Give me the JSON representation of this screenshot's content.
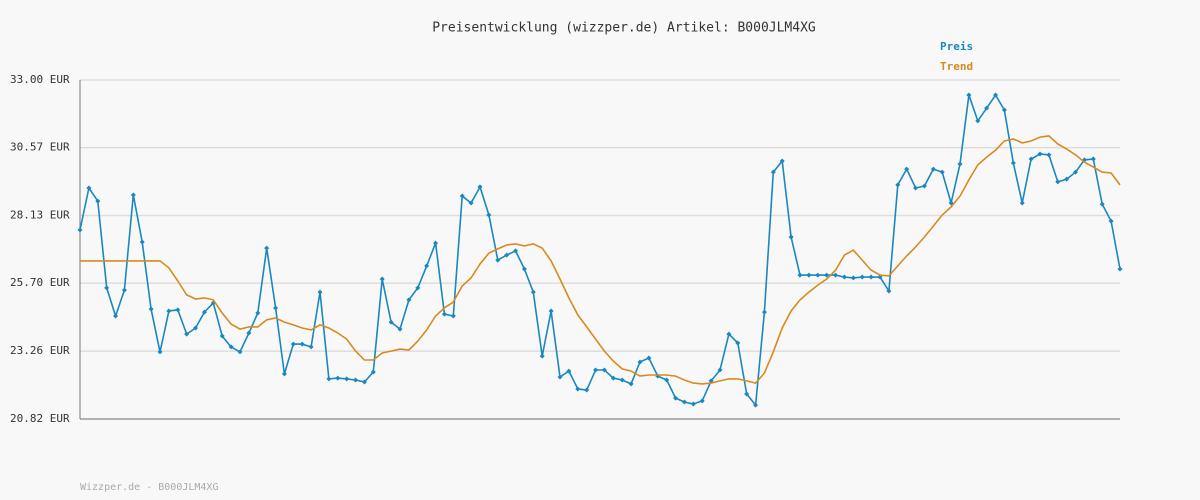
{
  "chart_data": {
    "type": "line",
    "title": "Preisentwicklung (wizzper.de) Artikel: B000JLM4XG",
    "footer": "Wizzper.de - B000JLM4XG",
    "categories": [
      null,
      null,
      null,
      null,
      null,
      null,
      null,
      null,
      null,
      null,
      null,
      null,
      null,
      null,
      null,
      null,
      null,
      null,
      null,
      null,
      null,
      null,
      null,
      null,
      null,
      null,
      null,
      null,
      null,
      null,
      null,
      null,
      null,
      null,
      null,
      null,
      null,
      null,
      null,
      null,
      null,
      null,
      null,
      null,
      null,
      null,
      null,
      null,
      null,
      null,
      null,
      null,
      null,
      null,
      null,
      null,
      null,
      null,
      null,
      null,
      null,
      null,
      null,
      null,
      null,
      null,
      null,
      null,
      null,
      null,
      null,
      null,
      null,
      null,
      null,
      null,
      null,
      null,
      null,
      null,
      null,
      null,
      null,
      null,
      null,
      null,
      null,
      null,
      null,
      null,
      null,
      null,
      null,
      null,
      null,
      null,
      null,
      null,
      null,
      null,
      null,
      null,
      null,
      null,
      null,
      null,
      null,
      null,
      null,
      null,
      null,
      null,
      null,
      null,
      null,
      null,
      null,
      null
    ],
    "series": [
      {
        "name": "Preis",
        "color": "#1a87c0",
        "markers": true,
        "values": [
          27.61,
          29.12,
          28.65,
          25.53,
          24.52,
          25.45,
          28.87,
          27.18,
          24.77,
          23.23,
          24.7,
          24.74,
          23.87,
          24.09,
          24.66,
          24.99,
          23.8,
          23.41,
          23.23,
          23.91,
          24.63,
          26.96,
          24.81,
          22.44,
          23.51,
          23.51,
          23.41,
          25.38,
          22.26,
          22.29,
          22.26,
          22.22,
          22.15,
          22.51,
          25.85,
          24.3,
          24.05,
          25.1,
          25.53,
          26.32,
          27.14,
          24.59,
          24.52,
          28.83,
          28.58,
          29.16,
          28.15,
          26.53,
          26.71,
          26.86,
          26.21,
          25.38,
          23.08,
          24.7,
          22.33,
          22.54,
          21.9,
          21.86,
          22.58,
          22.58,
          22.29,
          22.22,
          22.08,
          22.87,
          23.01,
          22.36,
          22.22,
          21.57,
          21.43,
          21.36,
          21.47,
          22.19,
          22.58,
          23.87,
          23.55,
          21.72,
          21.32,
          24.66,
          29.69,
          30.09,
          27.36,
          25.99,
          25.99,
          25.99,
          25.99,
          25.99,
          25.92,
          25.89,
          25.92,
          25.92,
          25.92,
          25.42,
          29.23,
          29.8,
          29.12,
          29.19,
          29.8,
          29.69,
          28.58,
          29.98,
          32.46,
          31.53,
          31.99,
          32.46,
          31.92,
          30.02,
          28.58,
          30.16,
          30.34,
          30.31,
          29.34,
          29.44,
          29.69,
          30.13,
          30.16,
          28.54,
          27.93,
          26.21
        ]
      },
      {
        "name": "Trend",
        "color": "#d98a1f",
        "markers": false,
        "values": [
          26.5,
          26.5,
          26.5,
          26.5,
          26.5,
          26.5,
          26.5,
          26.5,
          26.5,
          26.5,
          26.25,
          25.78,
          25.28,
          25.13,
          25.17,
          25.1,
          24.63,
          24.23,
          24.05,
          24.13,
          24.13,
          24.38,
          24.45,
          24.3,
          24.2,
          24.09,
          24.02,
          24.2,
          24.09,
          23.91,
          23.69,
          23.26,
          22.94,
          22.94,
          23.19,
          23.26,
          23.33,
          23.3,
          23.62,
          24.02,
          24.52,
          24.81,
          25.02,
          25.6,
          25.89,
          26.39,
          26.78,
          26.93,
          27.07,
          27.11,
          27.04,
          27.11,
          26.96,
          26.5,
          25.85,
          25.17,
          24.56,
          24.13,
          23.69,
          23.26,
          22.9,
          22.62,
          22.54,
          22.36,
          22.4,
          22.4,
          22.4,
          22.36,
          22.22,
          22.11,
          22.08,
          22.11,
          22.19,
          22.26,
          22.26,
          22.19,
          22.11,
          22.47,
          23.23,
          24.09,
          24.7,
          25.1,
          25.38,
          25.63,
          25.85,
          26.17,
          26.71,
          26.89,
          26.53,
          26.17,
          25.99,
          25.96,
          26.32,
          26.68,
          27.0,
          27.36,
          27.75,
          28.15,
          28.44,
          28.83,
          29.41,
          29.95,
          30.23,
          30.48,
          30.81,
          30.88,
          30.74,
          30.81,
          30.95,
          30.99,
          30.7,
          30.52,
          30.31,
          30.05,
          29.87,
          29.69,
          29.66,
          29.23
        ]
      }
    ],
    "ylim": [
      20.82,
      33.0
    ],
    "yticks": [
      {
        "value": 20.82,
        "label": "20.82 EUR"
      },
      {
        "value": 23.26,
        "label": "23.26 EUR"
      },
      {
        "value": 25.7,
        "label": "25.70 EUR"
      },
      {
        "value": 28.13,
        "label": "28.13 EUR"
      },
      {
        "value": 30.57,
        "label": "30.57 EUR"
      },
      {
        "value": 33.0,
        "label": "33.00 EUR"
      }
    ],
    "grid": true
  }
}
